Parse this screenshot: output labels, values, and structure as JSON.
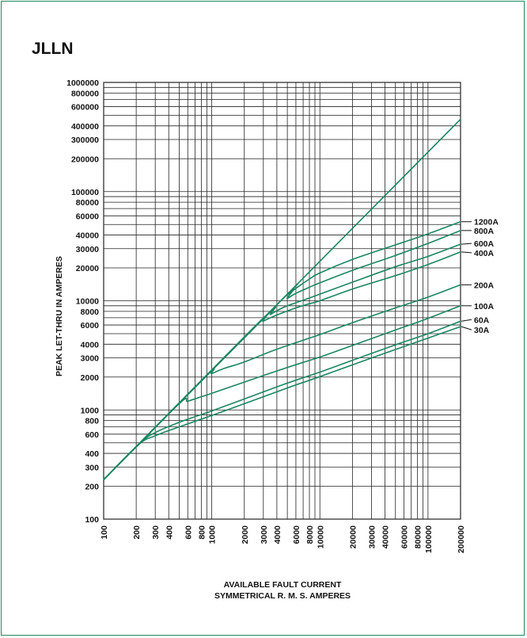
{
  "title": "JLLN",
  "chart_data": {
    "type": "line",
    "title": "JLLN",
    "xlabel": [
      "AVAILABLE FAULT CURRENT",
      "SYMMETRICAL  R. M. S.  AMPERES"
    ],
    "ylabel": "PEAK LET-THRU IN AMPERES",
    "xscale": "log",
    "yscale": "log",
    "xlim": [
      100,
      200000
    ],
    "ylim": [
      100,
      1000000
    ],
    "grid": true,
    "legend": "right, labels at line ends",
    "colors": {
      "line": "#1a8660",
      "grid": "#222222",
      "frame": "#1f8a5e"
    },
    "xticks": [
      {
        "v": 100,
        "label": "100"
      },
      {
        "v": 200,
        "label": "200"
      },
      {
        "v": 300,
        "label": "300"
      },
      {
        "v": 400,
        "label": "400"
      },
      {
        "v": 600,
        "label": "600"
      },
      {
        "v": 800,
        "label": "800"
      },
      {
        "v": 1000,
        "label": "1000"
      },
      {
        "v": 2000,
        "label": "2000"
      },
      {
        "v": 3000,
        "label": "3000"
      },
      {
        "v": 4000,
        "label": "4000"
      },
      {
        "v": 6000,
        "label": "6000"
      },
      {
        "v": 8000,
        "label": "8000"
      },
      {
        "v": 10000,
        "label": "10000"
      },
      {
        "v": 20000,
        "label": "20000"
      },
      {
        "v": 30000,
        "label": "30000"
      },
      {
        "v": 40000,
        "label": "40000"
      },
      {
        "v": 60000,
        "label": "60000"
      },
      {
        "v": 80000,
        "label": "80000"
      },
      {
        "v": 100000,
        "label": "100000"
      },
      {
        "v": 200000,
        "label": "200000"
      }
    ],
    "yticks": [
      {
        "v": 100,
        "label": "100"
      },
      {
        "v": 200,
        "label": "200"
      },
      {
        "v": 300,
        "label": "300"
      },
      {
        "v": 400,
        "label": "400"
      },
      {
        "v": 600,
        "label": "600"
      },
      {
        "v": 800,
        "label": "800"
      },
      {
        "v": 1000,
        "label": "1000"
      },
      {
        "v": 2000,
        "label": "2000"
      },
      {
        "v": 3000,
        "label": "3000"
      },
      {
        "v": 4000,
        "label": "4000"
      },
      {
        "v": 6000,
        "label": "6000"
      },
      {
        "v": 8000,
        "label": "8000"
      },
      {
        "v": 10000,
        "label": "10000"
      },
      {
        "v": 20000,
        "label": "20000"
      },
      {
        "v": 30000,
        "label": "30000"
      },
      {
        "v": 40000,
        "label": "40000"
      },
      {
        "v": 60000,
        "label": "60000"
      },
      {
        "v": 80000,
        "label": "80000"
      },
      {
        "v": 100000,
        "label": "100000"
      },
      {
        "v": 200000,
        "label": "200000"
      },
      {
        "v": 300000,
        "label": "300000"
      },
      {
        "v": 400000,
        "label": "400000"
      },
      {
        "v": 600000,
        "label": "600000"
      },
      {
        "v": 800000,
        "label": "800000"
      },
      {
        "v": 1000000,
        "label": "1000000"
      }
    ],
    "series": [
      {
        "points": [
          [
            100,
            230
          ],
          [
            200000,
            460000
          ]
        ]
      },
      {
        "name": "1200A",
        "points": [
          [
            100,
            230
          ],
          [
            4500,
            10350
          ],
          [
            5000,
            11300
          ],
          [
            6000,
            13000
          ],
          [
            8000,
            15800
          ],
          [
            10000,
            18000
          ],
          [
            20000,
            23900
          ],
          [
            50000,
            32500
          ],
          [
            100000,
            41000
          ],
          [
            200000,
            53000
          ]
        ]
      },
      {
        "name": "800A",
        "points": [
          [
            100,
            230
          ],
          [
            4000,
            9200
          ],
          [
            5000,
            10500
          ],
          [
            6000,
            11700
          ],
          [
            8000,
            13300
          ],
          [
            10000,
            14600
          ],
          [
            20000,
            19000
          ],
          [
            50000,
            26000
          ],
          [
            100000,
            33500
          ],
          [
            200000,
            44000
          ]
        ]
      },
      {
        "name": "600A",
        "points": [
          [
            100,
            230
          ],
          [
            2800,
            6400
          ],
          [
            3500,
            7500
          ],
          [
            4500,
            8600
          ],
          [
            6000,
            9600
          ],
          [
            8000,
            10600
          ],
          [
            10000,
            11500
          ],
          [
            20000,
            14800
          ],
          [
            50000,
            20500
          ],
          [
            100000,
            25500
          ],
          [
            200000,
            33000
          ]
        ]
      },
      {
        "name": "400A",
        "points": [
          [
            100,
            230
          ],
          [
            2400,
            5600
          ],
          [
            3000,
            6500
          ],
          [
            4000,
            7400
          ],
          [
            6000,
            8600
          ],
          [
            8000,
            9400
          ],
          [
            10000,
            10000
          ],
          [
            20000,
            12800
          ],
          [
            50000,
            17000
          ],
          [
            100000,
            21500
          ],
          [
            200000,
            28000
          ]
        ]
      },
      {
        "name": "200A",
        "points": [
          [
            100,
            230
          ],
          [
            850,
            1950
          ],
          [
            1000,
            2150
          ],
          [
            1300,
            2400
          ],
          [
            2000,
            2750
          ],
          [
            4000,
            3600
          ],
          [
            10000,
            4900
          ],
          [
            20000,
            6300
          ],
          [
            50000,
            8600
          ],
          [
            100000,
            10800
          ],
          [
            200000,
            14000
          ]
        ]
      },
      {
        "name": "100A",
        "points": [
          [
            100,
            230
          ],
          [
            480,
            1100
          ],
          [
            600,
            1200
          ],
          [
            800,
            1320
          ],
          [
            1000,
            1420
          ],
          [
            2000,
            1800
          ],
          [
            5000,
            2450
          ],
          [
            10000,
            3050
          ],
          [
            20000,
            3900
          ],
          [
            50000,
            5400
          ],
          [
            100000,
            6900
          ],
          [
            200000,
            9000
          ]
        ]
      },
      {
        "name": "60A",
        "points": [
          [
            100,
            230
          ],
          [
            220,
            500
          ],
          [
            300,
            620
          ],
          [
            500,
            770
          ],
          [
            1000,
            980
          ],
          [
            2000,
            1260
          ],
          [
            5000,
            1760
          ],
          [
            10000,
            2220
          ],
          [
            20000,
            2850
          ],
          [
            50000,
            3950
          ],
          [
            100000,
            5000
          ],
          [
            200000,
            6500
          ]
        ]
      },
      {
        "name": "30A",
        "points": [
          [
            100,
            230
          ],
          [
            210,
            480
          ],
          [
            300,
            580
          ],
          [
            500,
            700
          ],
          [
            1000,
            890
          ],
          [
            2000,
            1140
          ],
          [
            5000,
            1590
          ],
          [
            10000,
            2020
          ],
          [
            20000,
            2590
          ],
          [
            50000,
            3580
          ],
          [
            100000,
            4550
          ],
          [
            200000,
            5800
          ]
        ]
      }
    ]
  }
}
